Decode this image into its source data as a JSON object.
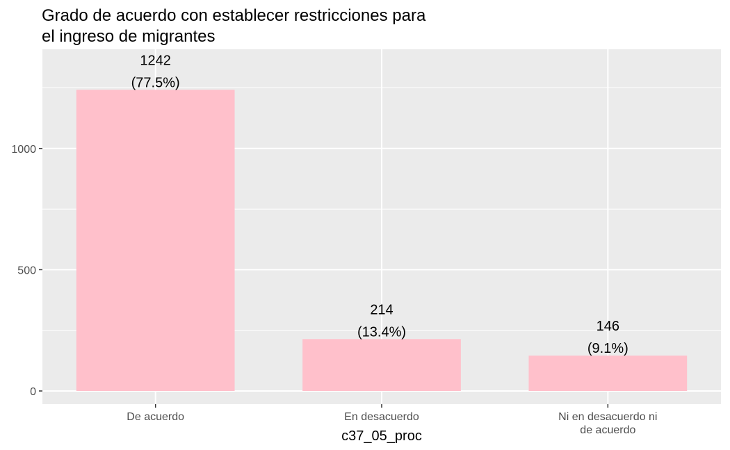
{
  "chart_data": {
    "type": "bar",
    "title_lines": [
      "Grado de acuerdo con establecer restricciones para",
      "el ingreso de migrantes"
    ],
    "xlabel": "c37_05_proc",
    "ylabel": "",
    "categories": [
      [
        "De acuerdo"
      ],
      [
        "En desacuerdo"
      ],
      [
        "Ni en desacuerdo ni",
        "de acuerdo"
      ]
    ],
    "values": [
      1242,
      214,
      146
    ],
    "value_labels": [
      "1242",
      "214",
      "146"
    ],
    "percent_labels": [
      "(77.5%)",
      "(13.4%)",
      "(9.1%)"
    ],
    "ylim": [
      0,
      1380
    ],
    "y_ticks": [
      0,
      500,
      1000
    ],
    "y_tick_labels": [
      "0",
      "500",
      "1000"
    ],
    "grid": true,
    "legend": "none",
    "colors": {
      "bar": "#FFC0CB",
      "panel": "#EBEBEB",
      "grid": "#FFFFFF",
      "tick_text": "#4D4D4D",
      "axis_tick": "#333333"
    }
  }
}
